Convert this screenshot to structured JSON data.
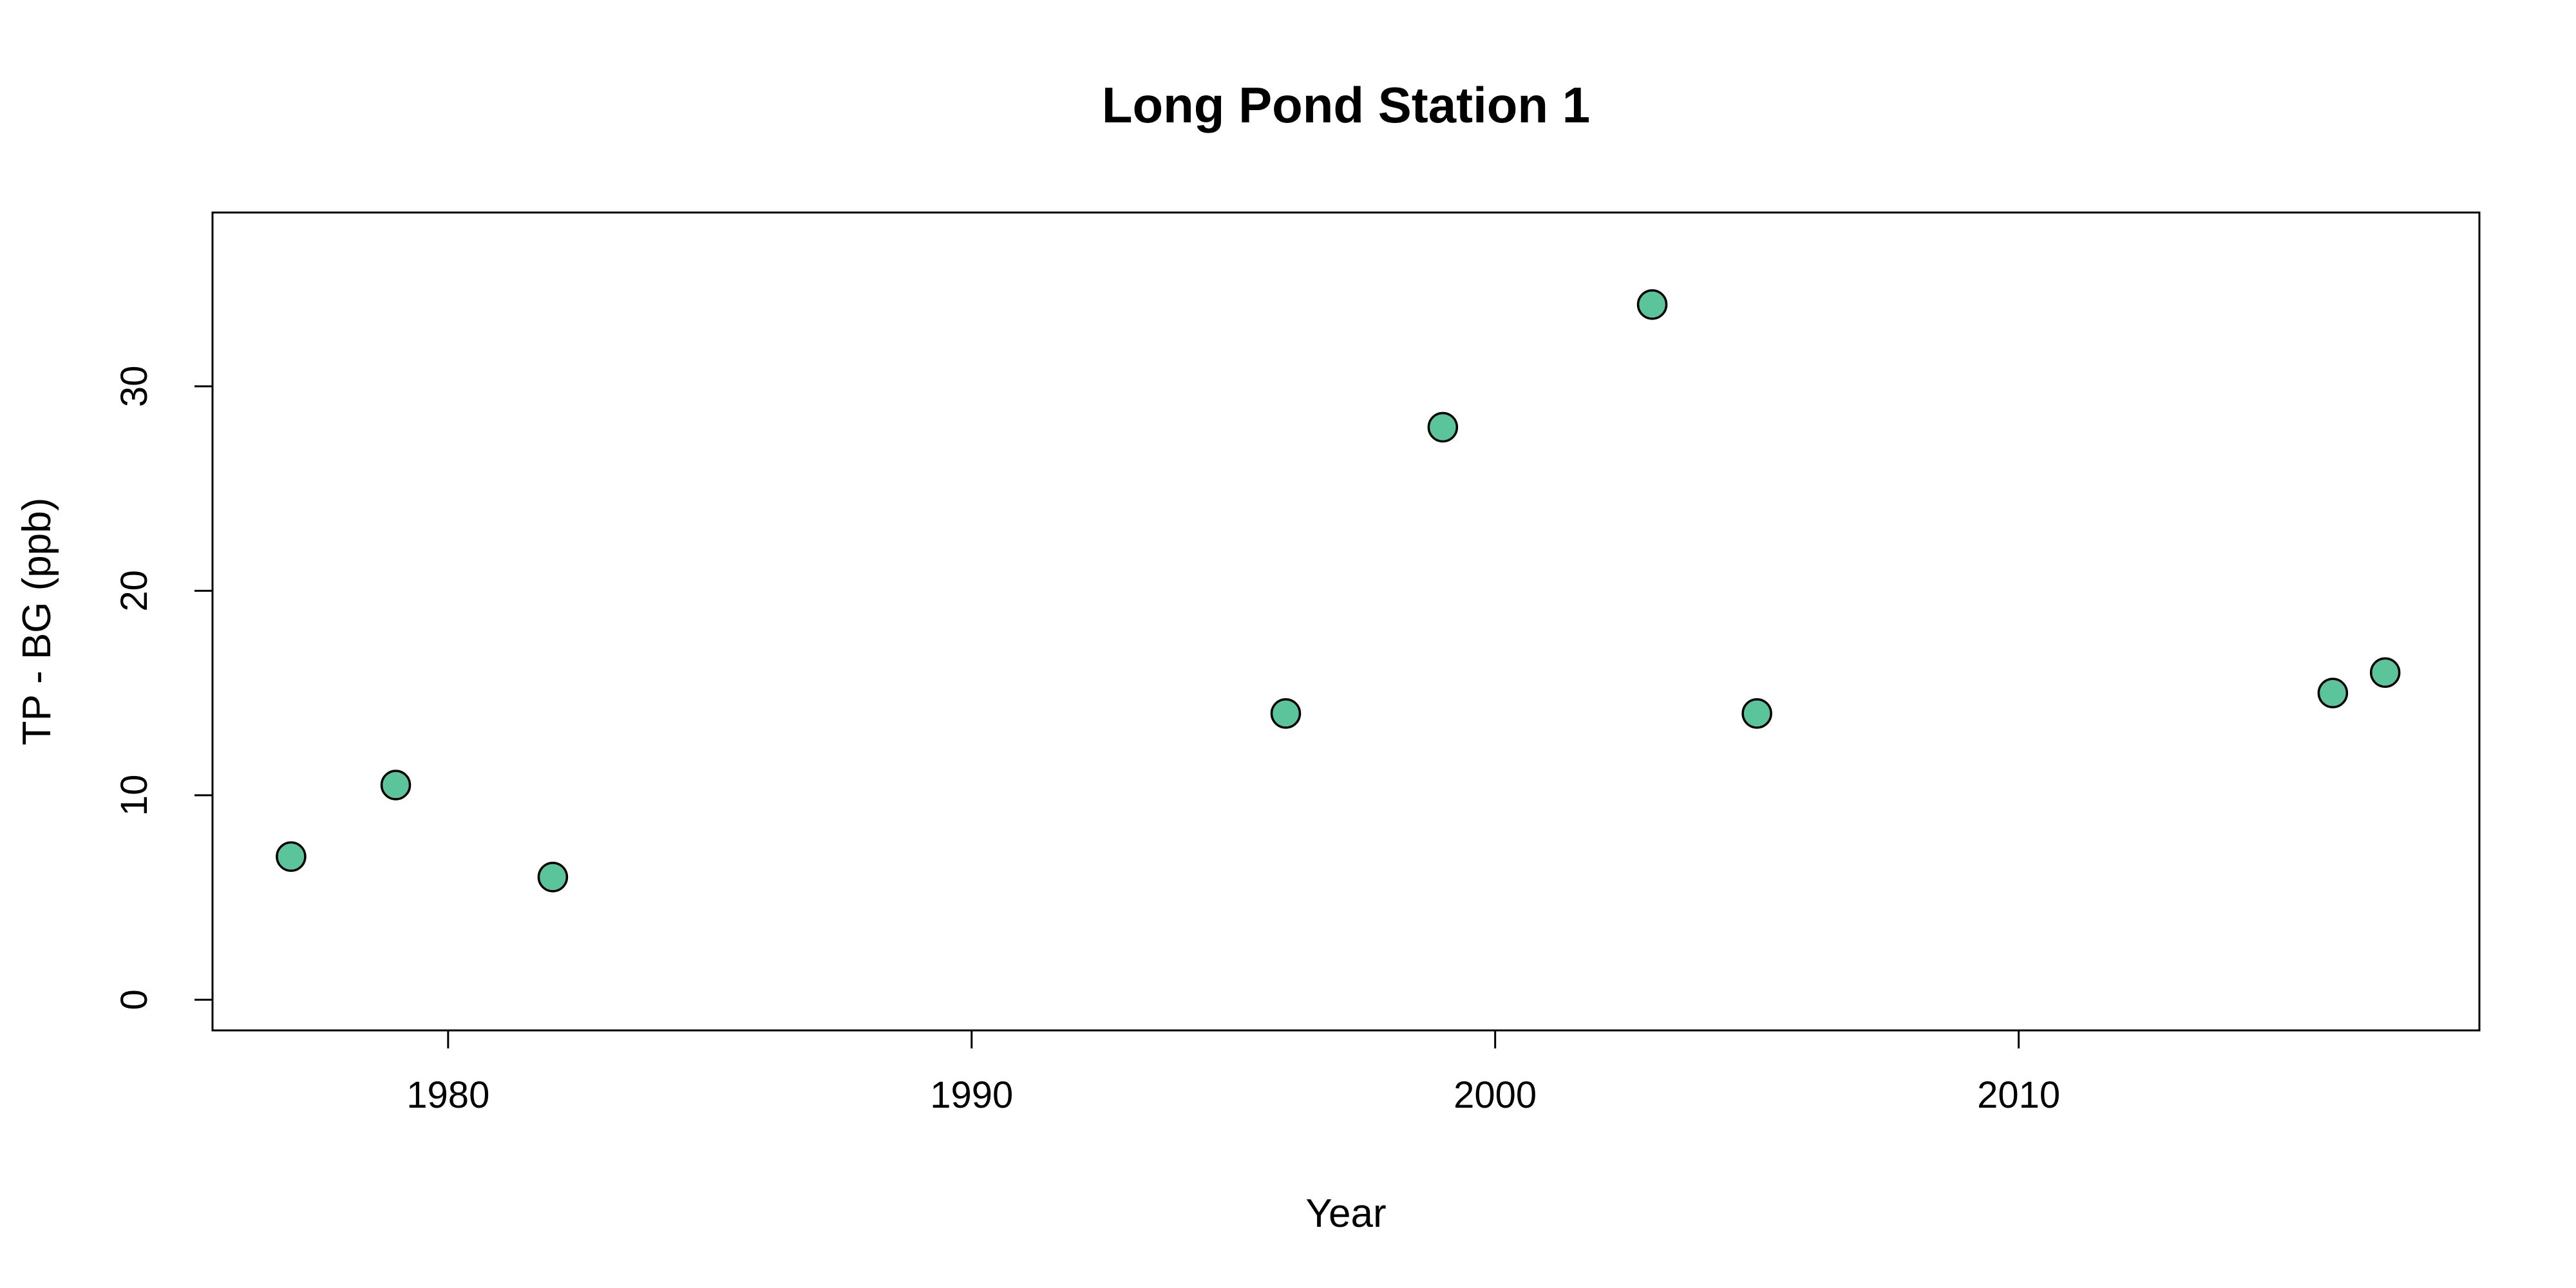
{
  "chart_data": {
    "type": "scatter",
    "title": "Long Pond Station 1",
    "xlabel": "Year",
    "ylabel": "TP - BG (ppb)",
    "xlim": [
      1975.5,
      2018.8
    ],
    "ylim": [
      -1.5,
      38.5
    ],
    "xticks": [
      1980,
      1990,
      2000,
      2010
    ],
    "yticks": [
      0,
      10,
      20,
      30
    ],
    "grid": false,
    "legend": "none",
    "point_color": "#5cc49a",
    "points": [
      {
        "x": 1977,
        "y": 7
      },
      {
        "x": 1979,
        "y": 10.5
      },
      {
        "x": 1982,
        "y": 6
      },
      {
        "x": 1996,
        "y": 14
      },
      {
        "x": 1999,
        "y": 28
      },
      {
        "x": 2003,
        "y": 34
      },
      {
        "x": 2005,
        "y": 14
      },
      {
        "x": 2016,
        "y": 15
      },
      {
        "x": 2017,
        "y": 16
      }
    ]
  }
}
